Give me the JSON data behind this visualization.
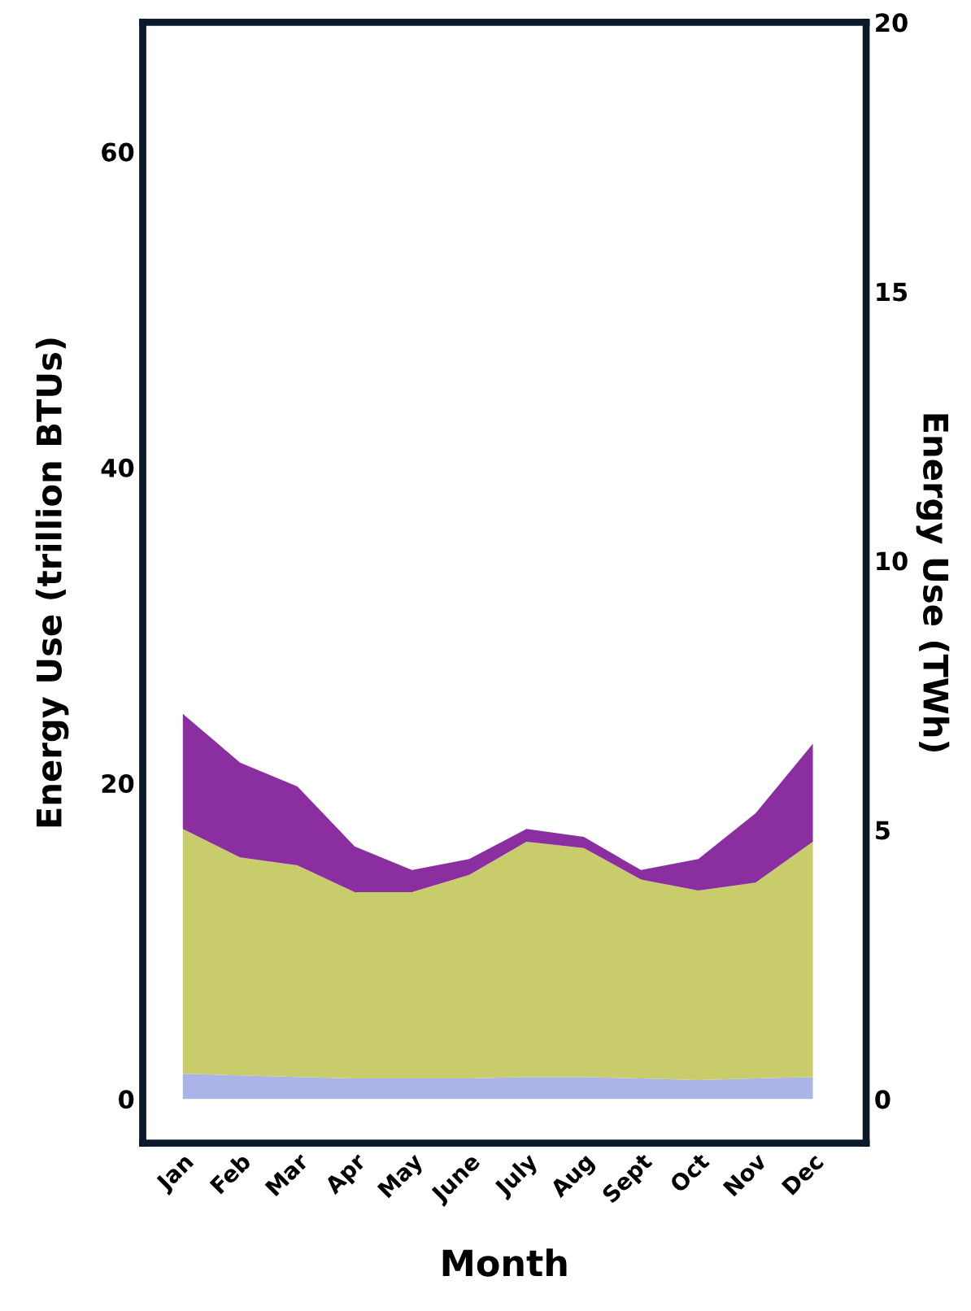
{
  "chart_data": {
    "type": "area",
    "stacked": true,
    "xlabel": "Month",
    "ylabel": "Energy Use (trillion BTUs)",
    "y2label": "Energy Use (TWh)",
    "categories": [
      "Jan",
      "Feb",
      "Mar",
      "Apr",
      "May",
      "June",
      "July",
      "Aug",
      "Sept",
      "Oct",
      "Nov",
      "Dec"
    ],
    "series": [
      {
        "color": "#aab4e6",
        "values": [
          1.6,
          1.5,
          1.4,
          1.3,
          1.3,
          1.3,
          1.4,
          1.4,
          1.3,
          1.2,
          1.3,
          1.4
        ]
      },
      {
        "color": "#c8cc6a",
        "values": [
          15.5,
          13.8,
          13.4,
          11.8,
          11.8,
          12.9,
          14.9,
          14.5,
          12.6,
          12.0,
          12.4,
          14.9
        ]
      },
      {
        "color": "#8a2ea0",
        "values": [
          7.3,
          6.0,
          5.0,
          2.9,
          1.4,
          1.0,
          0.8,
          0.7,
          0.6,
          2.0,
          4.4,
          6.2
        ]
      }
    ],
    "ylim": [
      -2.8,
      68.2
    ],
    "yticks": [
      0,
      20,
      40,
      60
    ],
    "y2lim": [
      -0.82,
      20
    ],
    "y2ticks": [
      0,
      5,
      10,
      15,
      20
    ],
    "grid": false,
    "legend": false
  }
}
